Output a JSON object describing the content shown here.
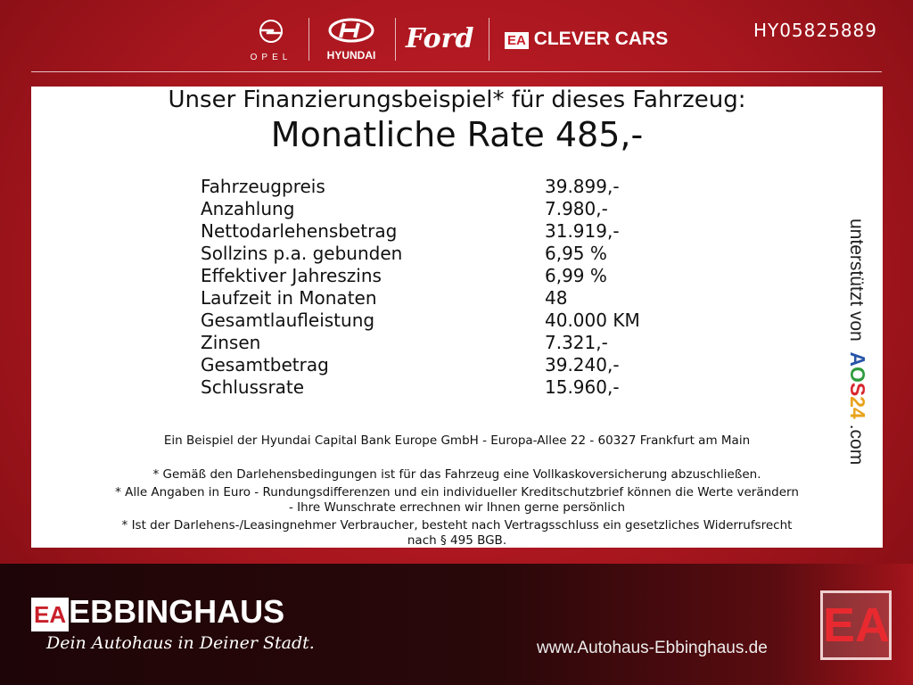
{
  "header": {
    "brands": [
      "OPEL",
      "HYUNDAI",
      "Ford",
      "CLEVER CARS"
    ],
    "clever_prefix": "EA",
    "code": "HY05825889"
  },
  "panel": {
    "title": "Unser Finanzierungsbeispiel* für dieses Fahrzeug:",
    "rate": "Monatliche Rate 485,-",
    "rows": [
      {
        "label": "Fahrzeugpreis",
        "value": "39.899,-"
      },
      {
        "label": "Anzahlung",
        "value": "7.980,-"
      },
      {
        "label": "Nettodarlehensbetrag",
        "value": "31.919,-"
      },
      {
        "label": "Sollzins p.a. gebunden",
        "value": "6,95 %"
      },
      {
        "label": "Effektiver Jahreszins",
        "value": "6,99 %"
      },
      {
        "label": "Laufzeit in Monaten",
        "value": "48"
      },
      {
        "label": "Gesamtlaufleistung",
        "value": "40.000 KM"
      },
      {
        "label": "Zinsen",
        "value": "7.321,-"
      },
      {
        "label": "Gesamtbetrag",
        "value": "39.240,-"
      },
      {
        "label": "Schlussrate",
        "value": "15.960,-"
      }
    ],
    "bank": "Ein Beispiel der Hyundai Capital Bank Europe GmbH - Europa-Allee 22 - 60327 Frankfurt am Main",
    "notes": [
      "* Gemäß den Darlehensbedingungen ist für das Fahrzeug eine Vollkaskoversicherung abzuschließen.",
      "* Alle Angaben in Euro - Rundungsdifferenzen und ein individueller Kreditschutzbrief können die Werte verändern",
      "- Ihre Wunschrate errechnen wir Ihnen gerne persönlich",
      "* Ist der Darlehens-/Leasingnehmer Verbraucher, besteht nach Vertragsschluss ein gesetzliches Widerrufsrecht",
      "nach § 495 BGB."
    ],
    "supported": {
      "prefix": "unterstützt von",
      "brand": "AOS24",
      "suffix": ".com"
    }
  },
  "footer": {
    "logo_prefix": "EA",
    "name": "EBBINGHAUS",
    "slogan": "Dein Autohaus in Deiner Stadt.",
    "url": "www.Autohaus-Ebbinghaus.de"
  },
  "colors": {
    "red": "#b81a22",
    "dark": "#1e0507"
  }
}
